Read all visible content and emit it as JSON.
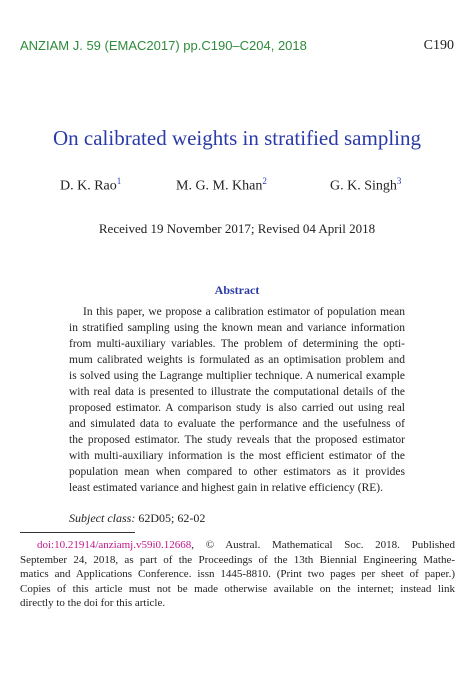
{
  "header": {
    "journal": "ANZIAM J. 59 (EMAC2017) pp.C190–C204, 2018",
    "page": "C190"
  },
  "title": "On calibrated weights in stratified sampling",
  "authors": [
    {
      "name": "D. K. Rao",
      "mark": "1"
    },
    {
      "name": "M. G. M. Khan",
      "mark": "2"
    },
    {
      "name": "G. K. Singh",
      "mark": "3"
    }
  ],
  "received": "Received 19 November 2017; Revised 04 April 2018",
  "abstract": {
    "heading": "Abstract",
    "lines": [
      "In this paper, we propose a calibration estimator of population mean",
      "in stratified sampling using the known mean and variance information",
      "from multi-auxiliary variables. The problem of determining the opti-",
      "mum calibrated weights is formulated as an optimisation problem and",
      "is solved using the Lagrange multiplier technique. A numerical example",
      "with real data is presented to illustrate the computational details of the",
      "proposed estimator. A comparison study is also carried out using real",
      "and simulated data to evaluate the performance and the usefulness of",
      "the proposed estimator. The study reveals that the proposed estimator",
      "with multi-auxiliary information is the most efficient estimator of the",
      "population mean when compared to other estimators as it provides",
      "least estimated variance and highest gain in relative efficiency (RE)."
    ]
  },
  "subject_class": {
    "label": "Subject class:",
    "value": "62D05; 62-02"
  },
  "footnote": {
    "doi": "doi:10.21914/anziamj.v59i0.12668",
    "lines": [
      ", © Austral. Mathematical Soc. 2018. Published",
      "September 24, 2018, as part of the Proceedings of the 13th Biennial Engineering Mathe-",
      "matics and Applications Conference. issn 1445-8810. (Print two pages per sheet of paper.)",
      "Copies of this article must not be made otherwise available on the internet; instead link",
      "directly to the doi for this article."
    ]
  }
}
